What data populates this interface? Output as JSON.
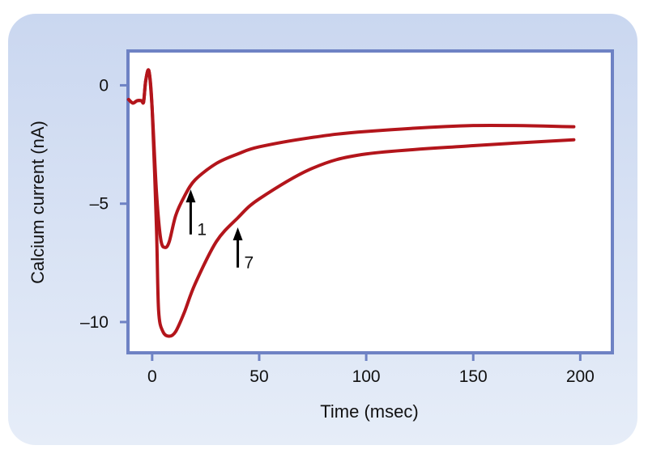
{
  "chart_data": {
    "type": "line",
    "title": "",
    "xlabel": "Time (msec)",
    "ylabel": "Calcium current (nA)",
    "xlim": [
      -11.3,
      215
    ],
    "ylim": [
      -11.3,
      1.45
    ],
    "xticks": [
      0,
      50,
      100,
      150,
      200
    ],
    "xtick_labels": [
      "0",
      "50",
      "100",
      "150",
      "200"
    ],
    "yticks": [
      0,
      -5,
      -10
    ],
    "ytick_labels": [
      "0",
      "–5",
      "–10"
    ],
    "grid": false,
    "line_color": "#b3151b",
    "frame_color": "#6e82c4",
    "series": [
      {
        "name": "1",
        "x": [
          -11,
          -9,
          -7,
          -5,
          -4,
          -3,
          -1.5,
          0,
          2,
          4,
          6,
          8,
          11,
          15,
          20,
          30,
          40,
          50,
          75,
          100,
          150,
          197
        ],
        "y": [
          -0.6,
          -0.75,
          -0.65,
          -0.65,
          -0.7,
          0.2,
          0.6,
          -1,
          -4.5,
          -6.5,
          -6.85,
          -6.6,
          -5.5,
          -4.7,
          -4.0,
          -3.3,
          -2.9,
          -2.6,
          -2.2,
          -1.95,
          -1.7,
          -1.75
        ]
      },
      {
        "name": "7",
        "x": [
          -11,
          -9,
          -7,
          -5,
          -4,
          -3,
          -1.5,
          0,
          2,
          3,
          5,
          8,
          11,
          15,
          20,
          30,
          40,
          50,
          75,
          100,
          150,
          197
        ],
        "y": [
          -0.6,
          -0.75,
          -0.65,
          -0.65,
          -0.7,
          0.2,
          0.6,
          -1,
          -6,
          -9.5,
          -10.4,
          -10.6,
          -10.4,
          -9.6,
          -8.4,
          -6.6,
          -5.6,
          -4.8,
          -3.5,
          -2.9,
          -2.55,
          -2.3
        ]
      }
    ],
    "annotations": [
      {
        "label": "1",
        "x": 18,
        "y_tip": -4.4,
        "y_tail": -6.3
      },
      {
        "label": "7",
        "x": 40,
        "y_tip": -6.0,
        "y_tail": -7.7
      }
    ]
  }
}
